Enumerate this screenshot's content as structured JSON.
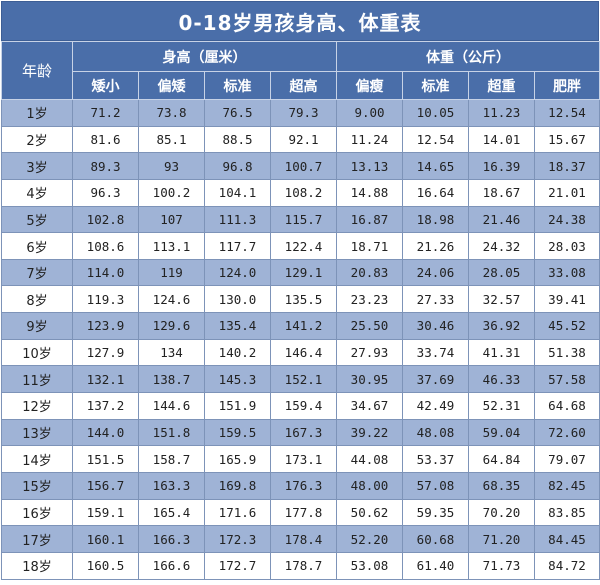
{
  "title": "0-18岁男孩身高、体重表",
  "header": {
    "age": "年龄",
    "height_group": "身高（厘米）",
    "weight_group": "体重（公斤）",
    "height_cols": [
      "矮小",
      "偏矮",
      "标准",
      "超高"
    ],
    "weight_cols": [
      "偏瘦",
      "标准",
      "超重",
      "肥胖"
    ]
  },
  "rows": [
    {
      "age": "1岁",
      "height": [
        "71.2",
        "73.8",
        "76.5",
        "79.3"
      ],
      "weight": [
        "9.00",
        "10.05",
        "11.23",
        "12.54"
      ]
    },
    {
      "age": "2岁",
      "height": [
        "81.6",
        "85.1",
        "88.5",
        "92.1"
      ],
      "weight": [
        "11.24",
        "12.54",
        "14.01",
        "15.67"
      ]
    },
    {
      "age": "3岁",
      "height": [
        "89.3",
        "93",
        "96.8",
        "100.7"
      ],
      "weight": [
        "13.13",
        "14.65",
        "16.39",
        "18.37"
      ]
    },
    {
      "age": "4岁",
      "height": [
        "96.3",
        "100.2",
        "104.1",
        "108.2"
      ],
      "weight": [
        "14.88",
        "16.64",
        "18.67",
        "21.01"
      ]
    },
    {
      "age": "5岁",
      "height": [
        "102.8",
        "107",
        "111.3",
        "115.7"
      ],
      "weight": [
        "16.87",
        "18.98",
        "21.46",
        "24.38"
      ]
    },
    {
      "age": "6岁",
      "height": [
        "108.6",
        "113.1",
        "117.7",
        "122.4"
      ],
      "weight": [
        "18.71",
        "21.26",
        "24.32",
        "28.03"
      ]
    },
    {
      "age": "7岁",
      "height": [
        "114.0",
        "119",
        "124.0",
        "129.1"
      ],
      "weight": [
        "20.83",
        "24.06",
        "28.05",
        "33.08"
      ]
    },
    {
      "age": "8岁",
      "height": [
        "119.3",
        "124.6",
        "130.0",
        "135.5"
      ],
      "weight": [
        "23.23",
        "27.33",
        "32.57",
        "39.41"
      ]
    },
    {
      "age": "9岁",
      "height": [
        "123.9",
        "129.6",
        "135.4",
        "141.2"
      ],
      "weight": [
        "25.50",
        "30.46",
        "36.92",
        "45.52"
      ]
    },
    {
      "age": "10岁",
      "height": [
        "127.9",
        "134",
        "140.2",
        "146.4"
      ],
      "weight": [
        "27.93",
        "33.74",
        "41.31",
        "51.38"
      ]
    },
    {
      "age": "11岁",
      "height": [
        "132.1",
        "138.7",
        "145.3",
        "152.1"
      ],
      "weight": [
        "30.95",
        "37.69",
        "46.33",
        "57.58"
      ]
    },
    {
      "age": "12岁",
      "height": [
        "137.2",
        "144.6",
        "151.9",
        "159.4"
      ],
      "weight": [
        "34.67",
        "42.49",
        "52.31",
        "64.68"
      ]
    },
    {
      "age": "13岁",
      "height": [
        "144.0",
        "151.8",
        "159.5",
        "167.3"
      ],
      "weight": [
        "39.22",
        "48.08",
        "59.04",
        "72.60"
      ]
    },
    {
      "age": "14岁",
      "height": [
        "151.5",
        "158.7",
        "165.9",
        "173.1"
      ],
      "weight": [
        "44.08",
        "53.37",
        "64.84",
        "79.07"
      ]
    },
    {
      "age": "15岁",
      "height": [
        "156.7",
        "163.3",
        "169.8",
        "176.3"
      ],
      "weight": [
        "48.00",
        "57.08",
        "68.35",
        "82.45"
      ]
    },
    {
      "age": "16岁",
      "height": [
        "159.1",
        "165.4",
        "171.6",
        "177.8"
      ],
      "weight": [
        "50.62",
        "59.35",
        "70.20",
        "83.85"
      ]
    },
    {
      "age": "17岁",
      "height": [
        "160.1",
        "166.3",
        "172.3",
        "178.4"
      ],
      "weight": [
        "52.20",
        "60.68",
        "71.20",
        "84.45"
      ]
    },
    {
      "age": "18岁",
      "height": [
        "160.5",
        "166.6",
        "172.7",
        "178.7"
      ],
      "weight": [
        "53.08",
        "61.40",
        "71.73",
        "84.72"
      ]
    }
  ]
}
